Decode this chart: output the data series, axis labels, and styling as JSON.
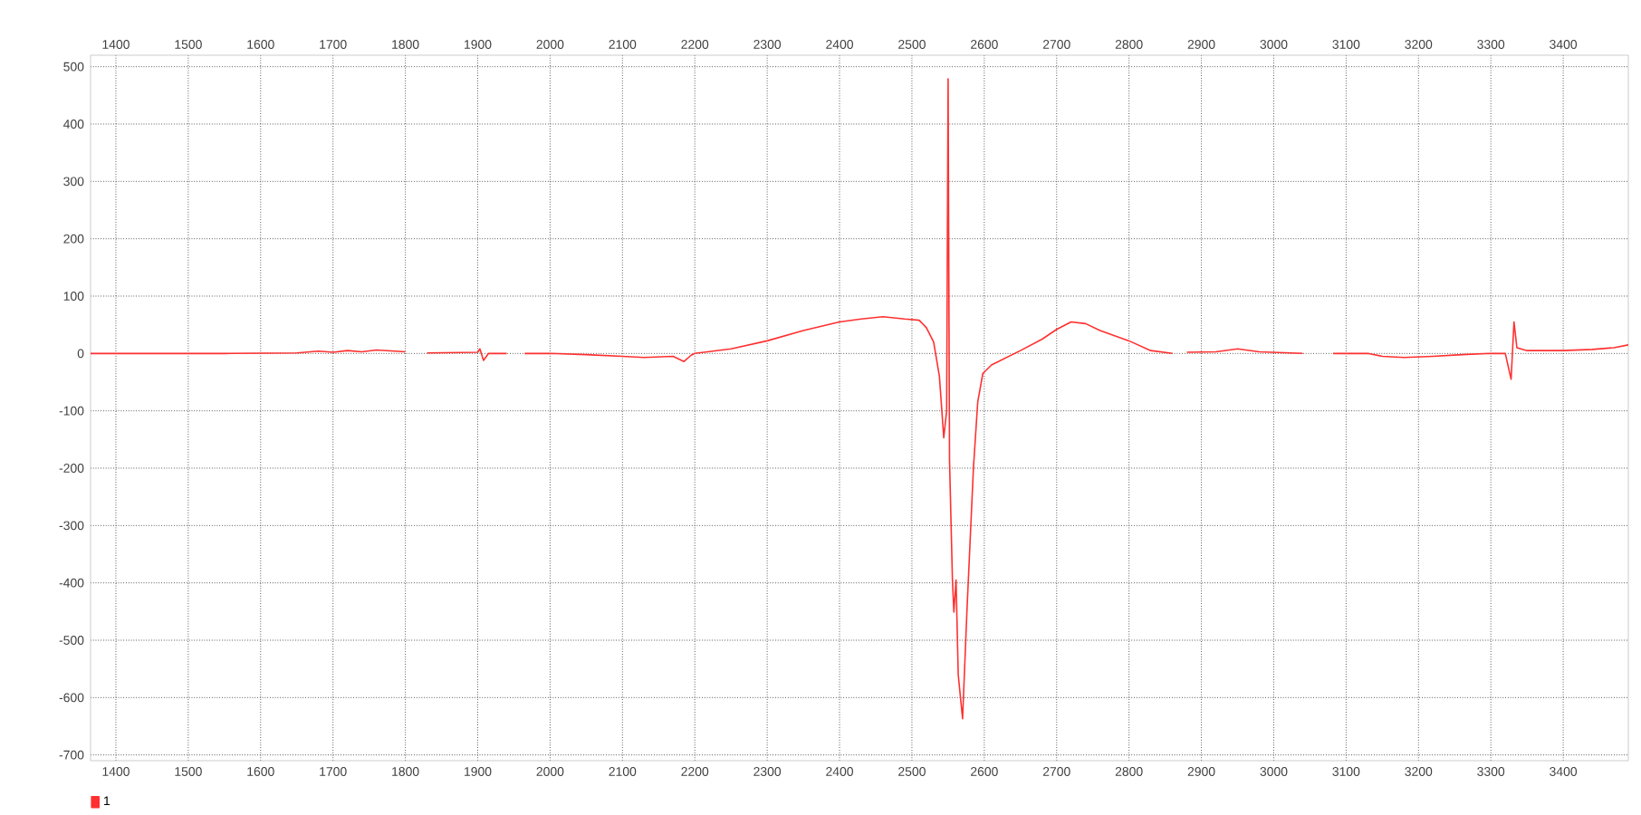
{
  "chart_data": {
    "type": "line",
    "legend": "bottom left",
    "grid": true,
    "line_style": "solid",
    "xlim": [
      1365,
      3490
    ],
    "ylim": [
      -710,
      520
    ],
    "x2lim": [
      1365,
      3490
    ],
    "xticks": [
      1400,
      1500,
      1600,
      1700,
      1800,
      1900,
      2000,
      2100,
      2200,
      2300,
      2400,
      2500,
      2600,
      2700,
      2800,
      2900,
      3000,
      3100,
      3200,
      3300,
      3400
    ],
    "x2ticks": [
      1400,
      1500,
      1600,
      1700,
      1800,
      1900,
      2000,
      2100,
      2200,
      2300,
      2400,
      2500,
      2600,
      2700,
      2800,
      2900,
      3000,
      3100,
      3200,
      3300,
      3400
    ],
    "yticks": [
      -700,
      -600,
      -500,
      -400,
      -300,
      -200,
      -100,
      0,
      100,
      200,
      300,
      400,
      500
    ],
    "series": [
      {
        "name": "1",
        "color": "#ff3030",
        "x": [
          1365,
          1450,
          1550,
          1650,
          1680,
          1700,
          1720,
          1740,
          1760,
          1800,
          1810,
          1830,
          1900,
          1903,
          1908,
          1915,
          1940,
          1950,
          1965,
          2000,
          2050,
          2100,
          2130,
          2170,
          2185,
          2195,
          2200,
          2250,
          2300,
          2350,
          2400,
          2430,
          2460,
          2490,
          2510,
          2520,
          2530,
          2538,
          2544,
          2548,
          2550,
          2552,
          2556,
          2558,
          2561,
          2564,
          2570,
          2576,
          2585,
          2591,
          2598,
          2610,
          2650,
          2680,
          2700,
          2720,
          2740,
          2760,
          2800,
          2830,
          2860,
          2870,
          2880,
          2920,
          2950,
          2980,
          3040,
          3060,
          3082,
          3130,
          3150,
          3180,
          3220,
          3260,
          3300,
          3320,
          3328,
          3332,
          3336,
          3350,
          3400,
          3440,
          3470,
          3490
        ],
        "values": [
          0,
          0,
          0,
          1,
          4,
          2,
          5,
          3,
          6,
          3,
          null,
          1,
          2,
          8,
          -12,
          0,
          0,
          null,
          0,
          0,
          -2,
          -5,
          -7,
          -5,
          -14,
          -3,
          0,
          8,
          22,
          40,
          55,
          60,
          64,
          60,
          58,
          45,
          20,
          -40,
          -147,
          -100,
          479,
          -187,
          -395,
          -451,
          -395,
          -560,
          -637,
          -450,
          -200,
          -84,
          -35,
          -20,
          5,
          25,
          42,
          55,
          52,
          40,
          22,
          5,
          0,
          null,
          2,
          3,
          8,
          3,
          0,
          null,
          0,
          0,
          -5,
          -7,
          -5,
          -2,
          0,
          0,
          -45,
          55,
          10,
          5,
          5,
          7,
          10,
          15
        ]
      }
    ]
  }
}
